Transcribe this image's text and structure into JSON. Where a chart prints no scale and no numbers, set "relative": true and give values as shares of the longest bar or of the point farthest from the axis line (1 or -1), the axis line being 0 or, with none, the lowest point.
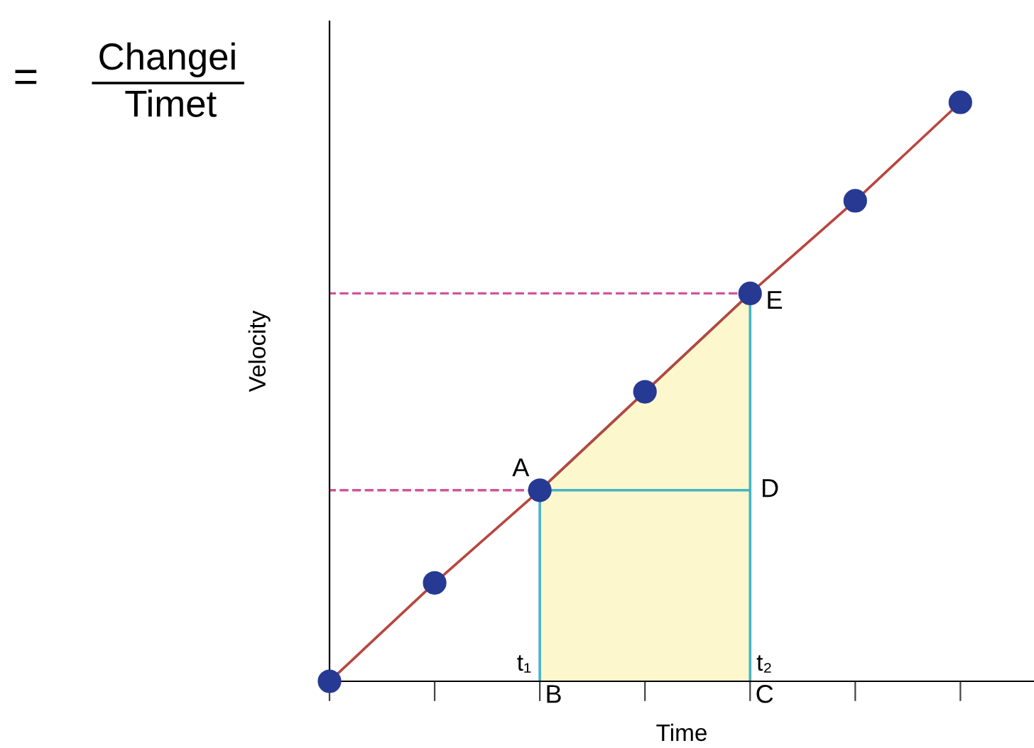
{
  "chart_data": {
    "type": "line",
    "relative": true,
    "xlabel": "Time",
    "ylabel": "Velocity",
    "categories": [
      null,
      null,
      null,
      null,
      null,
      null,
      null
    ],
    "series": [
      {
        "color": "#b8463f",
        "values": [
          0,
          0.17,
          0.33,
          0.5,
          0.67,
          0.83,
          1
        ],
        "marker": "circle",
        "colors": [
          "#263a93",
          "#263a93",
          "#263a93",
          "#263a93",
          "#263a93",
          "#263a93",
          "#263a93"
        ]
      }
    ],
    "ref_lines": [
      {
        "axis": "y",
        "value": 0.33,
        "color": "#d0559a",
        "line_style": "dashed"
      },
      {
        "axis": "y",
        "value": 0.67,
        "color": "#d0559a",
        "line_style": "dashed"
      }
    ],
    "annotations": [
      "=",
      "Changei",
      "Timet",
      "A",
      "B",
      "C",
      "D",
      "E",
      "t₁",
      "t₂"
    ],
    "grid": false,
    "legend": false
  }
}
